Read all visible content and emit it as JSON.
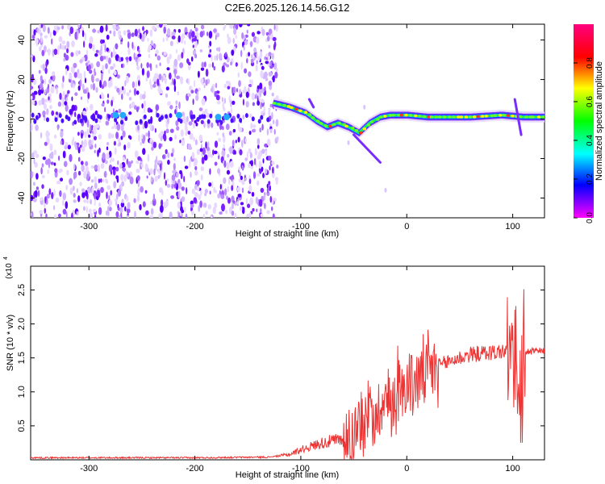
{
  "title": "C2E6.2025.126.14.56.G12",
  "chart_data": [
    {
      "type": "heatmap",
      "xlabel": "Height of straight line (km)",
      "ylabel": "Frequency (Hz)",
      "xlim": [
        -355,
        130
      ],
      "ylim": [
        -50,
        48
      ],
      "x_ticks": [
        -300,
        -200,
        -100,
        0,
        100
      ],
      "y_ticks": [
        -40,
        -20,
        0,
        20,
        40
      ],
      "colorbar": {
        "label": "Normalized spectral amplitude",
        "range": [
          0,
          1
        ],
        "ticks": [
          "0.0",
          "0.2",
          "0.4",
          "0.6",
          "0.8"
        ],
        "colors": [
          "#ff00ff",
          "#0000ff",
          "#00ffff",
          "#00ff00",
          "#ffff00",
          "#ff0000",
          "#ff0080"
        ]
      },
      "ridge": {
        "x": [
          -125,
          -110,
          -95,
          -85,
          -75,
          -65,
          -55,
          -45,
          -35,
          -25,
          -15,
          0,
          20,
          60,
          90,
          110,
          130
        ],
        "y": [
          8,
          6,
          3,
          -1,
          -4,
          -2,
          -4,
          -7,
          -2,
          1,
          2,
          2,
          1,
          1,
          2,
          1,
          1
        ]
      },
      "noise_region": [
        -355,
        -130
      ]
    },
    {
      "type": "line",
      "xlabel": "Height of straight line (km)",
      "ylabel": "SNR (10 * v/v)",
      "exponent_label": "(x10",
      "exponent": "4",
      "xlim": [
        -355,
        130
      ],
      "ylim": [
        0,
        2.85
      ],
      "x_ticks": [
        -300,
        -200,
        -100,
        0,
        100
      ],
      "y_ticks": [
        "0.5",
        "1.0",
        "1.5",
        "2.0",
        "2.5"
      ],
      "color": "#ee3333",
      "envelope": {
        "x": [
          -355,
          -200,
          -130,
          -110,
          -100,
          -80,
          -60,
          -50,
          -40,
          -30,
          -20,
          -10,
          0,
          20,
          40,
          60,
          80,
          95,
          100,
          105,
          110,
          120,
          130
        ],
        "y": [
          0.03,
          0.03,
          0.04,
          0.08,
          0.15,
          0.25,
          0.3,
          0.4,
          0.6,
          0.75,
          0.85,
          0.95,
          1.1,
          1.3,
          1.45,
          1.55,
          1.58,
          1.6,
          1.6,
          1.6,
          1.58,
          1.6,
          1.6
        ]
      }
    }
  ]
}
